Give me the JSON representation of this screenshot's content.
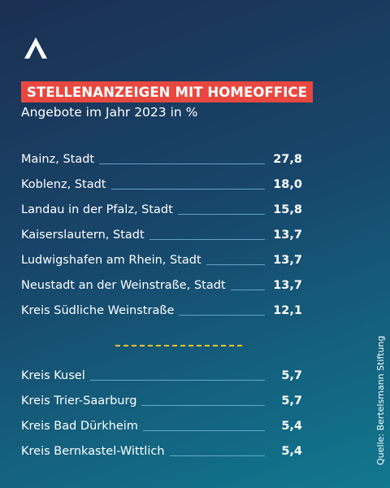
{
  "chart_data": {
    "type": "table",
    "title": "STELLENANZEIGEN MIT HOMEOFFICE",
    "subtitle": "Angebote im Jahr 2023 in %",
    "top_rows": [
      {
        "label": "Mainz, Stadt",
        "value": "27,8"
      },
      {
        "label": "Koblenz, Stadt",
        "value": "18,0"
      },
      {
        "label": "Landau in der Pfalz, Stadt",
        "value": "15,8"
      },
      {
        "label": "Kaiserslautern, Stadt",
        "value": "13,7"
      },
      {
        "label": "Ludwigshafen am Rhein, Stadt",
        "value": "13,7"
      },
      {
        "label": "Neustadt an der Weinstraße, Stadt",
        "value": "13,7"
      },
      {
        "label": "Kreis Südliche Weinstraße",
        "value": "12,1"
      }
    ],
    "bottom_rows": [
      {
        "label": "Kreis Kusel",
        "value": "5,7"
      },
      {
        "label": "Kreis Trier-Saarburg",
        "value": "5,7"
      },
      {
        "label": "Kreis Bad Dürkheim",
        "value": "5,4"
      },
      {
        "label": "Kreis Bernkastel-Wittlich",
        "value": "5,4"
      }
    ],
    "source": "Quelle:  Bertelsmann Stiftung"
  },
  "colors": {
    "title_background": "#e8483f",
    "separator": "#f2c12e",
    "leader_line": "#82bee6"
  },
  "logo": {
    "icon": "bertelsmann-stiftung-logo-icon"
  }
}
